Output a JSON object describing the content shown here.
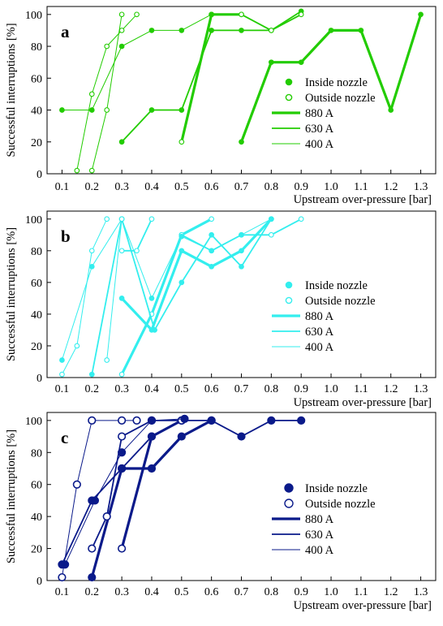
{
  "figure": {
    "xlabel": "Upstream over-pressure [bar]",
    "ylabel": "Successful interruptions [%]",
    "legend": {
      "inside_label": "Inside nozzle",
      "outside_label": "Outside nozzle",
      "current_labels": [
        "880 A",
        "630 A",
        "400 A"
      ]
    }
  },
  "chart_data": [
    {
      "type": "line",
      "panel_label": "a",
      "color": "#22cc00",
      "xlabel": "Upstream over-pressure [bar]",
      "ylabel": "Successful interruptions [%]",
      "xlim": [
        0.05,
        1.35
      ],
      "ylim": [
        0,
        105
      ],
      "xticks": [
        0.1,
        0.2,
        0.3,
        0.4,
        0.5,
        0.6,
        0.7,
        0.8,
        0.9,
        1.0,
        1.1,
        1.2,
        1.3
      ],
      "yticks": [
        0,
        20,
        40,
        60,
        80,
        100
      ],
      "grid": false,
      "legend_position": "right",
      "series": [
        {
          "name": "880 A",
          "location": "Inside nozzle",
          "x": [
            0.7,
            0.8,
            0.9,
            1.0,
            1.1,
            1.2,
            1.3
          ],
          "y": [
            20,
            70,
            70,
            90,
            90,
            40,
            100
          ]
        },
        {
          "name": "880 A",
          "location": "Outside nozzle",
          "x": [
            0.5,
            0.6,
            0.7
          ],
          "y": [
            20,
            100,
            100
          ]
        },
        {
          "name": "630 A",
          "location": "Inside nozzle",
          "x": [
            0.3,
            0.4,
            0.5,
            0.6,
            0.7,
            0.8,
            0.9
          ],
          "y": [
            20,
            40,
            40,
            90,
            90,
            90,
            102
          ]
        },
        {
          "name": "630 A",
          "location": "Outside nozzle",
          "x": [
            0.6,
            0.7,
            0.8,
            0.9
          ],
          "y": [
            100,
            100,
            90,
            100
          ]
        },
        {
          "name": "400 A",
          "location": "Inside nozzle",
          "x": [
            0.1,
            0.2,
            0.3,
            0.4,
            0.5,
            0.6
          ],
          "y": [
            40,
            40,
            80,
            90,
            90,
            100
          ]
        },
        {
          "name": "400 A",
          "location": "Outside nozzle",
          "x": [
            0.15,
            0.2,
            0.25,
            0.3,
            0.35
          ],
          "y": [
            2,
            50,
            80,
            90,
            100
          ]
        },
        {
          "name": "400 A",
          "location": "Outside nozzle",
          "x": [
            0.2,
            0.25,
            0.3
          ],
          "y": [
            2,
            40,
            100
          ]
        }
      ]
    },
    {
      "type": "line",
      "panel_label": "b",
      "color": "#33eeee",
      "xlabel": "Upstream over-pressure [bar]",
      "ylabel": "Successful interruptions [%]",
      "xlim": [
        0.05,
        1.35
      ],
      "ylim": [
        0,
        105
      ],
      "xticks": [
        0.1,
        0.2,
        0.3,
        0.4,
        0.5,
        0.6,
        0.7,
        0.8,
        0.9,
        1.0,
        1.1,
        1.2,
        1.3
      ],
      "yticks": [
        0,
        20,
        40,
        60,
        80,
        100
      ],
      "grid": false,
      "legend_position": "right",
      "series": [
        {
          "name": "880 A",
          "location": "Inside nozzle",
          "x": [
            0.3,
            0.4,
            0.5,
            0.6,
            0.7,
            0.8
          ],
          "y": [
            50,
            30,
            80,
            70,
            80,
            100
          ]
        },
        {
          "name": "880 A",
          "location": "Outside nozzle",
          "x": [
            0.3,
            0.4,
            0.5,
            0.6
          ],
          "y": [
            2,
            40,
            90,
            100
          ]
        },
        {
          "name": "630 A",
          "location": "Inside nozzle",
          "x": [
            0.2,
            0.3,
            0.41,
            0.5,
            0.6,
            0.7,
            0.8
          ],
          "y": [
            2,
            100,
            30,
            60,
            90,
            70,
            100
          ]
        },
        {
          "name": "630 A",
          "location": "Outside nozzle",
          "x": [
            0.3,
            0.35,
            0.4
          ],
          "y": [
            80,
            80,
            100
          ]
        },
        {
          "name": "630 A",
          "location": "Outside nozzle",
          "x": [
            0.5,
            0.6,
            0.7,
            0.8,
            0.9
          ],
          "y": [
            90,
            80,
            90,
            90,
            100
          ]
        },
        {
          "name": "400 A",
          "location": "Inside nozzle",
          "x": [
            0.1,
            0.2,
            0.3,
            0.4,
            0.5,
            0.6,
            0.7,
            0.8
          ],
          "y": [
            11,
            70,
            100,
            50,
            89,
            80,
            90,
            100
          ]
        },
        {
          "name": "400 A",
          "location": "Outside nozzle",
          "x": [
            0.1,
            0.15,
            0.2,
            0.25
          ],
          "y": [
            2,
            20,
            80,
            100
          ]
        },
        {
          "name": "400 A",
          "location": "Outside nozzle",
          "x": [
            0.25,
            0.3
          ],
          "y": [
            11,
            100
          ]
        }
      ]
    },
    {
      "type": "line",
      "panel_label": "c",
      "color": "#0a1a8a",
      "xlabel": "Upstream over-pressure [bar]",
      "ylabel": "Successful interruptions [%]",
      "xlim": [
        0.05,
        1.35
      ],
      "ylim": [
        0,
        105
      ],
      "xticks": [
        0.1,
        0.2,
        0.3,
        0.4,
        0.5,
        0.6,
        0.7,
        0.8,
        0.9,
        1.0,
        1.1,
        1.2,
        1.3
      ],
      "yticks": [
        0,
        20,
        40,
        60,
        80,
        100
      ],
      "grid": false,
      "legend_position": "right",
      "series": [
        {
          "name": "880 A",
          "location": "Inside nozzle",
          "x": [
            0.2,
            0.3,
            0.4,
            0.5,
            0.6
          ],
          "y": [
            2,
            70,
            70,
            90,
            100
          ]
        },
        {
          "name": "880 A",
          "location": "Outside nozzle",
          "x": [
            0.3,
            0.4,
            0.5
          ],
          "y": [
            20,
            90,
            100
          ]
        },
        {
          "name": "630 A",
          "location": "Inside nozzle",
          "x": [
            0.1,
            0.2,
            0.3,
            0.4,
            0.5,
            0.6,
            0.7,
            0.8,
            0.9
          ],
          "y": [
            10,
            50,
            70,
            90,
            100,
            100,
            90,
            100,
            100
          ]
        },
        {
          "name": "630 A",
          "location": "Outside nozzle",
          "x": [
            0.2,
            0.25,
            0.3,
            0.4,
            0.5
          ],
          "y": [
            20,
            40,
            90,
            100,
            100
          ]
        },
        {
          "name": "400 A",
          "location": "Inside nozzle",
          "x": [
            0.11,
            0.21,
            0.3,
            0.4,
            0.51
          ],
          "y": [
            10,
            50,
            80,
            100,
            101
          ]
        },
        {
          "name": "400 A",
          "location": "Outside nozzle",
          "x": [
            0.1,
            0.15,
            0.2,
            0.3,
            0.35
          ],
          "y": [
            2,
            60,
            100,
            100,
            100
          ]
        }
      ]
    }
  ]
}
